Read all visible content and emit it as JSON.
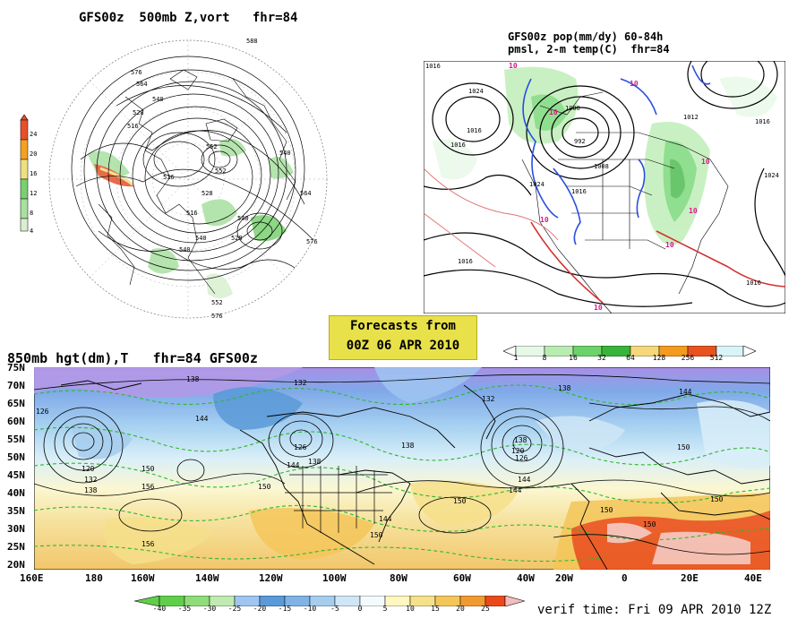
{
  "panel_500mb": {
    "title": "GFS00z  500mb Z,vort   fhr=84",
    "colorbar_labels": [
      "24",
      "20",
      "16",
      "12",
      "8",
      "4"
    ],
    "colorbar_colors": [
      "#e8502a",
      "#f5a020",
      "#f0e080",
      "#7ad070",
      "#a8e0a0",
      "#d8f0d0"
    ],
    "contour_labels": [
      "576",
      "564",
      "540",
      "528",
      "516",
      "552",
      "540",
      "552",
      "528",
      "516",
      "540",
      "564",
      "576",
      "540",
      "528",
      "516",
      "552",
      "576",
      "540",
      "588"
    ]
  },
  "panel_precip": {
    "title_line1": "GFS00z pop(mm/dy) 60-84h",
    "title_line2": "pmsl, 2-m temp(C)  fhr=84",
    "isobar_labels": [
      "1016",
      "1024",
      "1016",
      "1000",
      "1016",
      "1024",
      "1016",
      "1012",
      "1008",
      "1016",
      "1024",
      "1016",
      "1016",
      "992"
    ],
    "temp_labels": [
      "10",
      "10",
      "10",
      "10",
      "10",
      "10",
      "10",
      "10"
    ],
    "colorbar_labels": [
      "1",
      "8",
      "16",
      "32",
      "64",
      "128",
      "256",
      "512"
    ],
    "colorbar_colors": [
      "#e6f8e6",
      "#b8ecb0",
      "#6cd36a",
      "#39b43b",
      "#f6d77a",
      "#f49a1f",
      "#e7521f",
      "#d8f4f8"
    ]
  },
  "forecast_banner": {
    "line1": "Forecasts from",
    "line2": "00Z 06 APR 2010"
  },
  "panel_850mb": {
    "title": "850mb hgt(dm),T   fhr=84 GFS00z",
    "lat_labels": [
      "75N",
      "70N",
      "65N",
      "60N",
      "55N",
      "50N",
      "45N",
      "40N",
      "35N",
      "30N",
      "25N",
      "20N"
    ],
    "lon_labels": [
      "160E",
      "180",
      "160W",
      "140W",
      "120W",
      "100W",
      "80W",
      "60W",
      "40W",
      "20W",
      "0",
      "20E",
      "40E"
    ],
    "height_labels": [
      "138",
      "132",
      "126",
      "144",
      "120",
      "132",
      "138",
      "150",
      "156",
      "126",
      "144",
      "138",
      "132",
      "138",
      "150",
      "144",
      "138",
      "126",
      "120",
      "144",
      "150",
      "156",
      "150",
      "144",
      "144",
      "150",
      "150",
      "150",
      "150",
      "138"
    ],
    "colorbar_labels": [
      "-40",
      "-35",
      "-30",
      "-25",
      "-20",
      "-15",
      "-10",
      "-5",
      "0",
      "5",
      "10",
      "15",
      "20",
      "25"
    ],
    "colorbar_colors": [
      "#5fcf4a",
      "#8fdc7a",
      "#bfeab0",
      "#9fc5f0",
      "#5a9ad8",
      "#7fb3e6",
      "#a6cdee",
      "#cfe6f6",
      "#f4fbff",
      "#fff6c0",
      "#f6e08a",
      "#f4c65a",
      "#f09a30",
      "#ea4a1a",
      "#f5bcbc"
    ],
    "verif_time": "verif time: Fri 09 APR 2010 12Z"
  }
}
